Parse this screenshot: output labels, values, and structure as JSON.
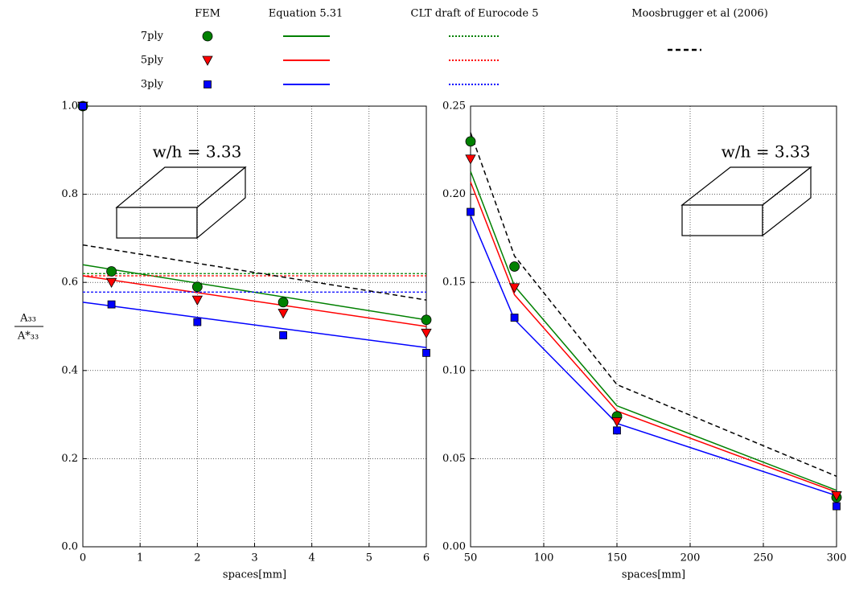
{
  "legend": {
    "columns": [
      "FEM",
      "Equation 5.31",
      "CLT draft of Eurocode 5",
      "Moosbrugger et al (2006)"
    ],
    "rows": [
      "7ply",
      "5ply",
      "3ply"
    ]
  },
  "chart_data": [
    {
      "type": "line",
      "xlabel": "spaces[mm]",
      "ylabel": {
        "numerator": "A₃₃",
        "denominator": "A*₃₃"
      },
      "annotation": "w/h = 3.33",
      "xlim": [
        0,
        6
      ],
      "xticks": [
        0,
        1,
        2,
        3,
        4,
        5,
        6
      ],
      "ylim": [
        0,
        1
      ],
      "yticks": [
        {
          "value": 0,
          "label": "0.0"
        },
        0.2,
        0.4,
        0.6,
        0.8,
        {
          "value": 1,
          "label": "1.0"
        }
      ],
      "grid": true,
      "x": [
        0,
        0.5,
        2,
        3.5,
        6
      ],
      "line_x": [
        0,
        6
      ],
      "series": [
        {
          "color": "#008000",
          "marker": "circle",
          "fem": [
            1.0,
            0.625,
            0.59,
            0.555,
            0.515
          ],
          "equation": [
            0.64,
            0.515
          ],
          "eurocode": 0.62
        },
        {
          "color": "#ff0000",
          "marker": "triangle",
          "fem": [
            1.0,
            0.6,
            0.56,
            0.53,
            0.485
          ],
          "equation": [
            0.615,
            0.5
          ],
          "eurocode": 0.615
        },
        {
          "color": "#0000ff",
          "marker": "square",
          "fem": [
            1.0,
            0.55,
            0.51,
            0.48,
            0.44
          ],
          "equation": [
            0.555,
            0.452
          ],
          "eurocode": 0.578
        }
      ],
      "moosbrugger": [
        0.685,
        0.56
      ]
    },
    {
      "type": "line",
      "xlabel": "spaces[mm]",
      "annotation": "w/h = 3.33",
      "xlim": [
        50,
        300
      ],
      "xticks": [
        50,
        100,
        150,
        200,
        250,
        300
      ],
      "ylim": [
        0,
        0.25
      ],
      "yticks": [
        {
          "value": 0,
          "label": "0.00"
        },
        0.05,
        {
          "value": 0.1,
          "label": "0.10"
        },
        0.15,
        {
          "value": 0.2,
          "label": "0.20"
        },
        0.25
      ],
      "grid": true,
      "x": [
        50,
        80,
        150,
        300
      ],
      "line_x": [
        50,
        80,
        150,
        300
      ],
      "series": [
        {
          "color": "#008000",
          "marker": "circle",
          "fem": [
            0.23,
            0.159,
            0.074,
            0.028
          ],
          "equation": [
            0.213,
            0.148,
            0.08,
            0.032
          ]
        },
        {
          "color": "#ff0000",
          "marker": "triangle",
          "fem": [
            0.22,
            0.147,
            0.071,
            0.029
          ],
          "equation": [
            0.207,
            0.143,
            0.077,
            0.031
          ]
        },
        {
          "color": "#0000ff",
          "marker": "square",
          "fem": [
            0.19,
            0.13,
            0.066,
            0.023
          ],
          "equation": [
            0.188,
            0.129,
            0.07,
            0.029
          ]
        }
      ],
      "moosbrugger": [
        0.235,
        0.165,
        0.092,
        0.04
      ]
    }
  ]
}
